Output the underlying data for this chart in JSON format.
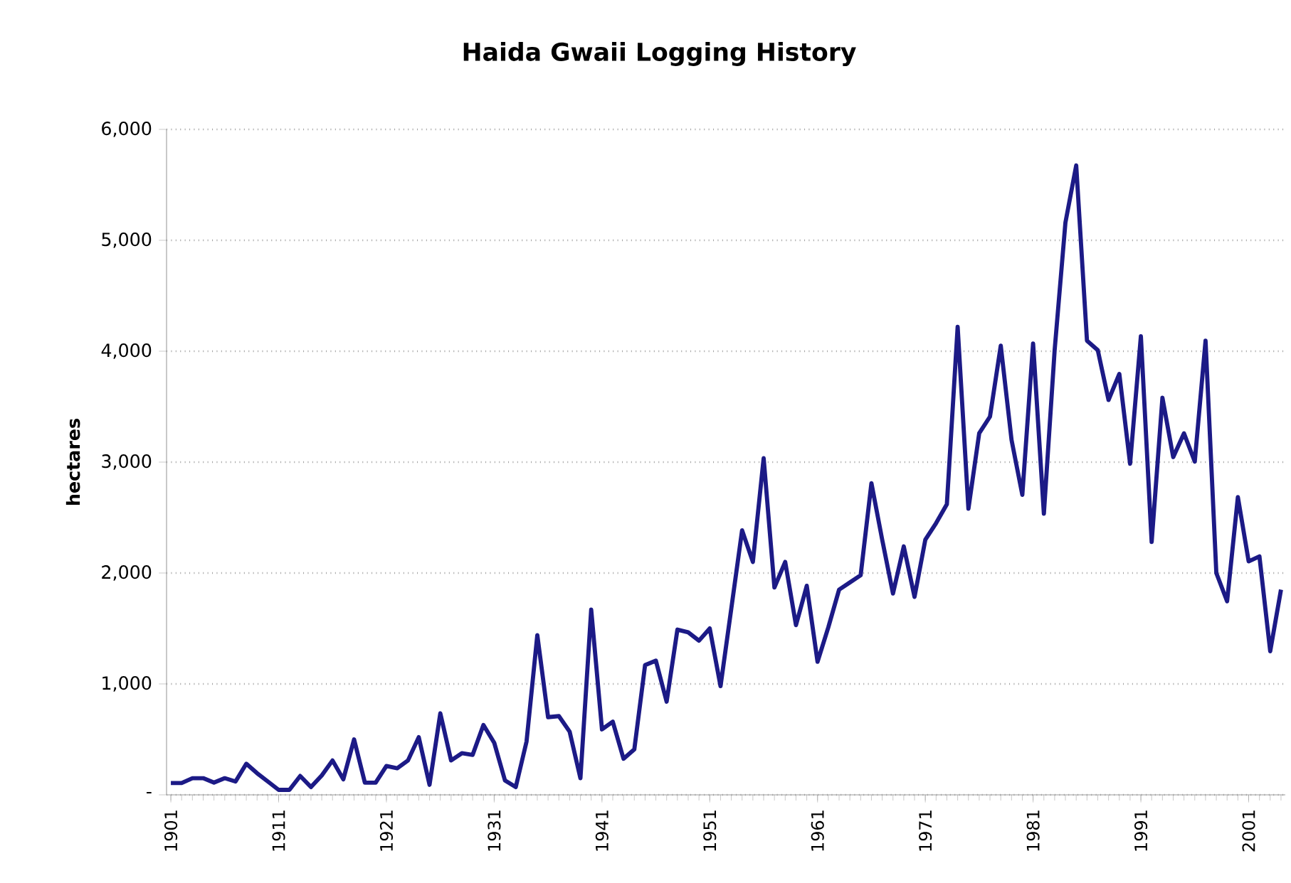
{
  "chart_data": {
    "type": "line",
    "title": "Haida Gwaii Logging History",
    "ylabel": "hectares",
    "categories": [
      "1901",
      null,
      null,
      null,
      null,
      null,
      null,
      null,
      null,
      null,
      "1911",
      null,
      null,
      null,
      null,
      null,
      null,
      null,
      null,
      null,
      "1921",
      null,
      null,
      null,
      null,
      null,
      null,
      null,
      null,
      null,
      "1931",
      null,
      null,
      null,
      null,
      null,
      null,
      null,
      null,
      null,
      "1941",
      null,
      null,
      null,
      null,
      null,
      null,
      null,
      null,
      null,
      "1951",
      null,
      null,
      null,
      null,
      null,
      null,
      null,
      null,
      null,
      "1961",
      null,
      null,
      null,
      null,
      null,
      null,
      null,
      null,
      null,
      "1971",
      null,
      null,
      null,
      null,
      null,
      null,
      null,
      null,
      null,
      "1981",
      null,
      null,
      null,
      null,
      null,
      null,
      null,
      null,
      null,
      "1991",
      null,
      null,
      null,
      null,
      null,
      null,
      null,
      null,
      null,
      "2001",
      null,
      null,
      null
    ],
    "series": [
      {
        "color": "#1c1a86",
        "values": [
          106,
          106,
          150,
          150,
          110,
          150,
          120,
          280,
          195,
          120,
          45,
          45,
          170,
          70,
          175,
          310,
          140,
          500,
          110,
          110,
          260,
          240,
          310,
          520,
          90,
          735,
          310,
          375,
          360,
          630,
          470,
          130,
          70,
          480,
          1440,
          700,
          710,
          570,
          150,
          1670,
          590,
          660,
          325,
          410,
          1170,
          1210,
          840,
          1490,
          1465,
          1390,
          1500,
          980,
          1680,
          2385,
          2100,
          3035,
          1870,
          2100,
          1530,
          1885,
          1200,
          1510,
          1850,
          1915,
          1980,
          2810,
          2300,
          1815,
          2240,
          1785,
          2300,
          2450,
          2620,
          4220,
          2580,
          3260,
          3410,
          4050,
          3200,
          2705,
          4070,
          2535,
          4010,
          5160,
          5675,
          4095,
          4010,
          3560,
          3795,
          2985,
          4135,
          2280,
          3580,
          3045,
          3260,
          3005,
          4095,
          2000,
          1745,
          2685,
          2105,
          2150,
          1295,
          1850
        ]
      }
    ],
    "ylim": [
      0,
      6000
    ],
    "yticks": [
      {
        "value": 0,
        "label": "-"
      },
      {
        "value": 1000,
        "label": "1,000"
      },
      {
        "value": 2000,
        "label": "2,000"
      },
      {
        "value": 3000,
        "label": "3,000"
      },
      {
        "value": 4000,
        "label": "4,000"
      },
      {
        "value": 5000,
        "label": "5,000"
      },
      {
        "value": 6000,
        "label": "6,000"
      }
    ],
    "grid": "y",
    "marker": "none",
    "line_style": "solid"
  }
}
